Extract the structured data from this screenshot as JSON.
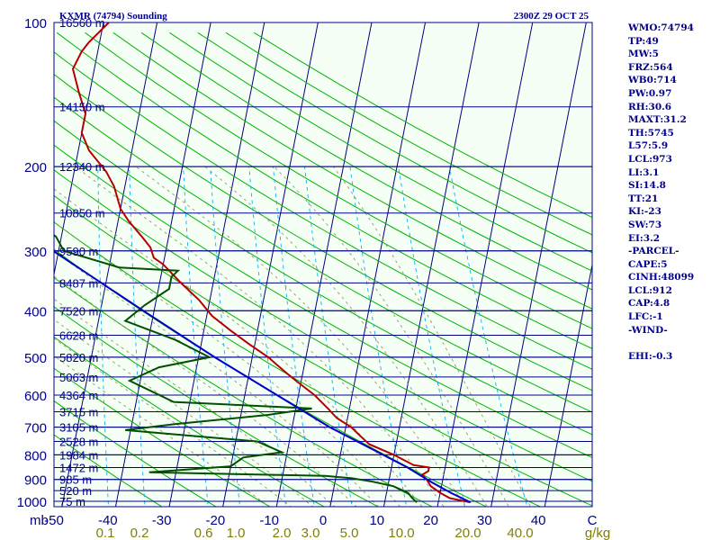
{
  "header": {
    "station": "KXMR (74794) Sounding",
    "time": "2300Z 29 OCT 25"
  },
  "colors": {
    "background": "#f5fff5",
    "frame": "#00008b",
    "isobar": "#00008b",
    "isotherm": "#000080",
    "dry_adiabat": "#00b400",
    "moist_adiabat": "#999966",
    "mixing_ratio": "#00b4ff",
    "temperature": "#b40000",
    "dewpoint": "#005000",
    "parcel": "#0000c8"
  },
  "stats": [
    "WMO:74794",
    "TP:49",
    "MW:5",
    "FRZ:564",
    "WB0:714",
    "PW:0.97",
    "RH:30.6",
    "MAXT:31.2",
    "TH:5745",
    "L57:5.9",
    "LCL:973",
    "LI:3.1",
    "SI:14.8",
    "TT:21",
    "KI:-23",
    "SW:73",
    "EI:3.2",
    "-PARCEL-",
    "CAPE:5",
    "CINH:48099",
    "LCL:912",
    "CAP:4.8",
    "LFC:-1",
    "-WIND-",
    "",
    "EHI:-0.3"
  ],
  "chart_data": {
    "type": "line",
    "chart_kind": "Skew-T log-P sounding",
    "y_axis": {
      "label": "mb",
      "scale": "log",
      "range": [
        1000,
        100
      ],
      "ticks": [
        100,
        200,
        300,
        400,
        500,
        600,
        700,
        800,
        900,
        1000
      ]
    },
    "x_axis": {
      "unit": "°C",
      "range": [
        -50,
        50
      ],
      "ticks": [
        "-50",
        "-40",
        "-30",
        "-20",
        "-10",
        "0",
        "10",
        "20",
        "30",
        "40",
        "C"
      ]
    },
    "mixing_ratio_labels": [
      "0.1",
      "0.2",
      "0.6",
      "1.0",
      "2.0",
      "3.0",
      "5.0",
      "10.0",
      "20.0",
      "40.0",
      "g/kg"
    ],
    "height_labels": [
      {
        "p": 100,
        "label": "16560 m"
      },
      {
        "p": 150,
        "label": "14150 m"
      },
      {
        "p": 200,
        "label": "12340 m"
      },
      {
        "p": 250,
        "label": "10850 m"
      },
      {
        "p": 300,
        "label": "9590 m"
      },
      {
        "p": 350,
        "label": "8487 m"
      },
      {
        "p": 400,
        "label": "7520 m"
      },
      {
        "p": 450,
        "label": "6628 m"
      },
      {
        "p": 500,
        "label": "5820 m"
      },
      {
        "p": 550,
        "label": "5063 m"
      },
      {
        "p": 600,
        "label": "4364 m"
      },
      {
        "p": 650,
        "label": "3715 m"
      },
      {
        "p": 700,
        "label": "3105 m"
      },
      {
        "p": 750,
        "label": "2528 m"
      },
      {
        "p": 800,
        "label": "1984 m"
      },
      {
        "p": 850,
        "label": "1472 m"
      },
      {
        "p": 900,
        "label": "985 m"
      },
      {
        "p": 950,
        "label": "520 m"
      },
      {
        "p": 1000,
        "label": "75 m"
      }
    ],
    "series": [
      {
        "key": "temperature",
        "points": [
          [
            1005,
            26
          ],
          [
            985,
            22
          ],
          [
            960,
            20
          ],
          [
            930,
            18
          ],
          [
            900,
            17
          ],
          [
            880,
            16
          ],
          [
            865,
            17
          ],
          [
            850,
            17
          ],
          [
            840,
            14
          ],
          [
            800,
            10
          ],
          [
            760,
            5
          ],
          [
            730,
            3
          ],
          [
            700,
            1
          ],
          [
            670,
            -2
          ],
          [
            640,
            -4
          ],
          [
            600,
            -7
          ],
          [
            560,
            -11
          ],
          [
            540,
            -13
          ],
          [
            520,
            -15
          ],
          [
            500,
            -17
          ],
          [
            470,
            -21
          ],
          [
            440,
            -25
          ],
          [
            410,
            -29
          ],
          [
            380,
            -32
          ],
          [
            350,
            -36
          ],
          [
            320,
            -40
          ],
          [
            310,
            -42
          ],
          [
            295,
            -43
          ],
          [
            280,
            -45
          ],
          [
            260,
            -48
          ],
          [
            245,
            -50
          ],
          [
            220,
            -52
          ],
          [
            205,
            -54
          ],
          [
            185,
            -58
          ],
          [
            170,
            -60
          ],
          [
            155,
            -60
          ],
          [
            140,
            -62
          ],
          [
            125,
            -64
          ],
          [
            115,
            -63
          ],
          [
            110,
            -62
          ],
          [
            100,
            -59
          ]
        ]
      },
      {
        "key": "dewpoint",
        "points": [
          [
            1005,
            16
          ],
          [
            985,
            15
          ],
          [
            960,
            14
          ],
          [
            930,
            11
          ],
          [
            910,
            7
          ],
          [
            895,
            3
          ],
          [
            885,
            -2
          ],
          [
            870,
            -35
          ],
          [
            845,
            -20
          ],
          [
            810,
            -18
          ],
          [
            790,
            -11
          ],
          [
            750,
            -16
          ],
          [
            710,
            -41
          ],
          [
            690,
            -32
          ],
          [
            660,
            -15
          ],
          [
            640,
            -7
          ],
          [
            620,
            -33
          ],
          [
            560,
            -42
          ],
          [
            525,
            -37
          ],
          [
            500,
            -28
          ],
          [
            460,
            -35
          ],
          [
            420,
            -45
          ],
          [
            390,
            -42
          ],
          [
            360,
            -38
          ],
          [
            340,
            -38
          ],
          [
            330,
            -37
          ],
          [
            325,
            -48
          ],
          [
            300,
            -59
          ],
          [
            280,
            -61
          ],
          [
            260,
            -66
          ],
          [
            240,
            -72
          ],
          [
            220,
            -76
          ],
          [
            195,
            -80
          ],
          [
            175,
            -82
          ],
          [
            155,
            -85
          ],
          [
            140,
            -87
          ],
          [
            128,
            -88
          ],
          [
            118,
            -90
          ],
          [
            108,
            -90
          ],
          [
            100,
            -88
          ]
        ]
      },
      {
        "key": "parcel",
        "points": [
          [
            1005,
            26
          ],
          [
            960,
            22
          ],
          [
            912,
            18
          ],
          [
            850,
            13
          ],
          [
            800,
            8
          ],
          [
            700,
            -3
          ],
          [
            600,
            -14
          ],
          [
            500,
            -27
          ],
          [
            400,
            -42
          ],
          [
            300,
            -61
          ],
          [
            200,
            -84
          ],
          [
            150,
            -97
          ],
          [
            105,
            -111
          ]
        ]
      }
    ]
  }
}
